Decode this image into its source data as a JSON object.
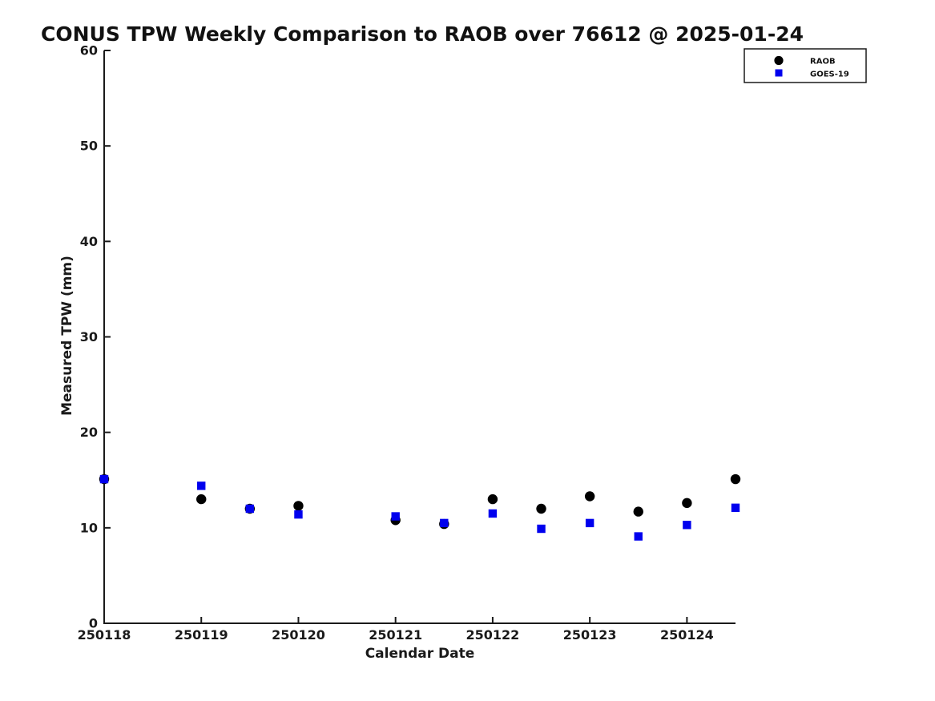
{
  "page": {
    "background": "#ffffff"
  },
  "chart_data": {
    "type": "scatter",
    "title": "CONUS TPW Weekly Comparison to RAOB over 76612 @ 2025-01-24",
    "xlabel": "Calendar Date",
    "ylabel": "Measured TPW (mm)",
    "x_tick_labels": [
      "250118",
      "250119",
      "250120",
      "250121",
      "250122",
      "250123",
      "250124"
    ],
    "x_tick_values": [
      0,
      1,
      2,
      3,
      4,
      5,
      6
    ],
    "x_values_are": "days after 250118 (half-day resolution)",
    "xlim": [
      0,
      6.5
    ],
    "y_ticks": [
      0,
      10,
      20,
      30,
      40,
      50,
      60
    ],
    "ylim": [
      0,
      60
    ],
    "grid": false,
    "legend_position": "top-right",
    "legend": [
      {
        "name": "RAOB",
        "marker": "circle",
        "color": "#000000"
      },
      {
        "name": "GOES-19",
        "marker": "square",
        "color": "#0000ee"
      }
    ],
    "series": [
      {
        "name": "RAOB",
        "marker": "circle",
        "color": "#000000",
        "x": [
          0,
          1,
          1.5,
          2,
          3,
          3.5,
          4,
          4.5,
          5,
          5.5,
          6,
          6.5
        ],
        "y": [
          15.1,
          13.0,
          12.0,
          12.3,
          10.8,
          10.4,
          13.0,
          12.0,
          13.3,
          11.7,
          12.6,
          15.1
        ]
      },
      {
        "name": "GOES-19",
        "marker": "square",
        "color": "#0000ee",
        "x": [
          0,
          1,
          1.5,
          2,
          3,
          3.5,
          4,
          4.5,
          5,
          5.5,
          6,
          6.5
        ],
        "y": [
          15.1,
          14.4,
          12.0,
          11.4,
          11.2,
          10.5,
          11.5,
          9.9,
          10.5,
          9.1,
          10.3,
          12.1
        ]
      }
    ]
  }
}
